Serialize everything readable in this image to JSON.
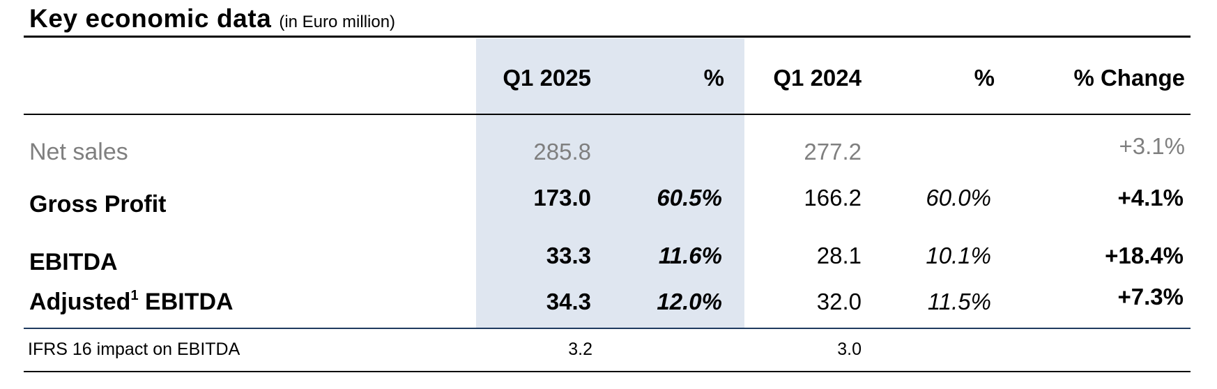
{
  "title": "Key economic data",
  "unit": "(in Euro million)",
  "headers": [
    "Q1 2025",
    "%",
    "Q1 2024",
    "%",
    "% Change"
  ],
  "rows": [
    {
      "label": "Net sales",
      "sup": "",
      "label2": "",
      "q1_2025": "285.8",
      "pct_2025": "",
      "q1_2024": "277.2",
      "pct_2024": "",
      "change": "+3.1%"
    },
    {
      "label": "Gross Profit",
      "sup": "",
      "label2": "",
      "q1_2025": "173.0",
      "pct_2025": "60.5%",
      "q1_2024": "166.2",
      "pct_2024": "60.0%",
      "change": "+4.1%"
    },
    {
      "label": "EBITDA",
      "sup": "",
      "label2": "",
      "q1_2025": "33.3",
      "pct_2025": "11.6%",
      "q1_2024": "28.1",
      "pct_2024": "10.1%",
      "change": "+18.4%"
    },
    {
      "label": "Adjusted",
      "sup": "1",
      "label2": " EBITDA",
      "q1_2025": "34.3",
      "pct_2025": "12.0%",
      "q1_2024": "32.0",
      "pct_2024": "11.5%",
      "change": "+7.3%"
    },
    {
      "label": "IFRS 16 impact on EBITDA",
      "sup": "",
      "label2": "",
      "q1_2025": "3.2",
      "pct_2025": "",
      "q1_2024": "3.0",
      "pct_2024": "",
      "change": ""
    }
  ],
  "colors": {
    "highlight": "#dfe6f0",
    "muted_text": "#7f7f7f",
    "separator": "#1f3a5f"
  }
}
